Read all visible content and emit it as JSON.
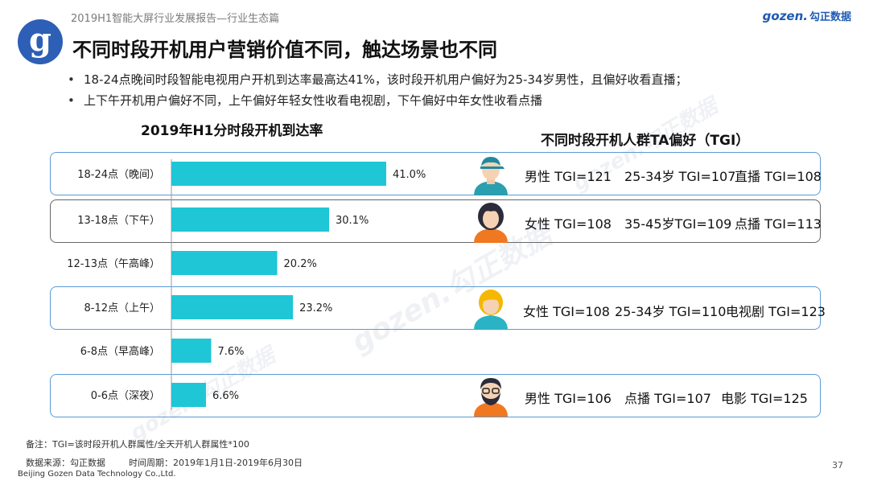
{
  "header": {
    "report_title": "2019H1智能大屏行业发展报告—行业生态篇",
    "brand_en": "gozen.",
    "brand_cn": "勾正数据",
    "logo_letter": "g"
  },
  "title": "不同时段开机用户营销价值不同，触达场景也不同",
  "bullets": [
    "18-24点晚间时段智能电视用户开机到达率最高达41%，该时段开机用户偏好为25-34岁男性，且偏好收看直播；",
    "上下午开机用户偏好不同，上午偏好年轻女性收看电视剧，下午偏好中年女性收看点播"
  ],
  "chart_data": {
    "type": "bar",
    "orientation": "horizontal",
    "title": "2019年H1分时段开机到达率",
    "categories": [
      "18-24点（晚间）",
      "13-18点（下午）",
      "12-13点（午高峰）",
      "8-12点（上午）",
      "6-8点（早高峰）",
      "0-6点（深夜）"
    ],
    "values": [
      41.0,
      30.1,
      20.2,
      23.2,
      7.6,
      6.6
    ],
    "value_labels": [
      "41.0%",
      "30.1%",
      "20.2%",
      "23.2%",
      "7.6%",
      "6.6%"
    ],
    "xlim": [
      0,
      50
    ],
    "color": "#1fc6d6",
    "grid": false
  },
  "tga": {
    "title": "不同时段开机人群TA偏好（TGI）",
    "rows": [
      {
        "persona": "young-male-icon",
        "items": [
          "男性 TGI=121",
          "25-34岁 TGI=107",
          "直播 TGI=108"
        ]
      },
      {
        "persona": "middle-aged-female-icon",
        "items": [
          "女性 TGI=108",
          "35-45岁TGI=109",
          "点播 TGI=113"
        ]
      },
      {
        "persona": "young-female-icon",
        "items": [
          "女性 TGI=108",
          "25-34岁 TGI=110",
          "电视剧 TGI=123"
        ]
      },
      {
        "persona": "bearded-male-icon",
        "items": [
          "男性 TGI=106",
          "点播 TGI=107",
          "电影 TGI=125"
        ]
      }
    ]
  },
  "footer": {
    "note": "备注：TGI=该时段开机人群属性/全天开机人群属性*100",
    "source": "数据来源：勾正数据",
    "period": "时间周期：2019年1月1日-2019年6月30日",
    "company": "Beijing Gozen Data Technology Co.,Ltd.",
    "page_number": "37"
  },
  "colors": {
    "bar": "#1fc6d6",
    "box_blue": "#5b9bd5",
    "box_gray": "#666666",
    "logo_blue": "#2c5fb5"
  }
}
